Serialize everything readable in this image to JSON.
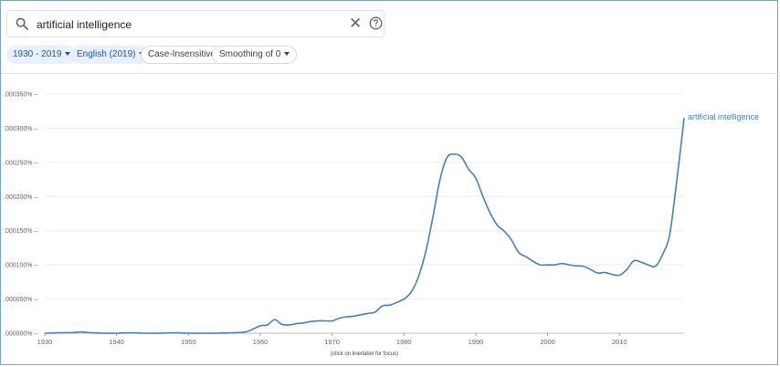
{
  "search": {
    "query": "artificial intelligence",
    "clear_glyph": "✕"
  },
  "filters": {
    "year_range": "1930 - 2019",
    "corpus": "English (2019)",
    "case": "Case-Insensitive",
    "smoothing": "Smoothing of 0"
  },
  "icons": {
    "search": "search-icon",
    "clear": "close-icon",
    "help": "help-icon",
    "dropdown": "caret-down-icon"
  },
  "colors": {
    "line": "#4a7fb5",
    "chip_fill": "#e8f0fe",
    "chip_text": "#1a57a8"
  },
  "chart_data": {
    "type": "line",
    "x_range": [
      1930,
      2019
    ],
    "y_range": [
      0,
      0.00035
    ],
    "x_ticks": [
      1930,
      1940,
      1950,
      1960,
      1970,
      1980,
      1990,
      2000,
      2010
    ],
    "x_tick_labels": [
      "1930",
      "1940",
      "1950",
      "1960",
      "1970",
      "1980",
      "1990",
      "2000",
      "2010"
    ],
    "y_ticks": [
      0,
      5e-05,
      0.0001,
      0.00015,
      0.0002,
      0.00025,
      0.0003,
      0.00035
    ],
    "y_tick_labels": [
      ".000000%",
      ".000050%",
      ".000100%",
      ".000150%",
      ".000200%",
      ".000250%",
      ".000300%",
      ".000350%"
    ],
    "note": "(click on line/label for focus)",
    "series": [
      {
        "name": "artificial intelligence",
        "x": [
          1930,
          1932,
          1934,
          1935,
          1936,
          1938,
          1940,
          1942,
          1944,
          1946,
          1948,
          1950,
          1952,
          1954,
          1956,
          1957,
          1958,
          1959,
          1960,
          1961,
          1962,
          1963,
          1964,
          1965,
          1966,
          1967,
          1968,
          1969,
          1970,
          1971,
          1972,
          1973,
          1974,
          1975,
          1976,
          1977,
          1978,
          1979,
          1980,
          1981,
          1982,
          1983,
          1984,
          1985,
          1986,
          1987,
          1988,
          1989,
          1990,
          1991,
          1992,
          1993,
          1994,
          1995,
          1996,
          1997,
          1998,
          1999,
          2000,
          2001,
          2002,
          2003,
          2004,
          2005,
          2006,
          2007,
          2008,
          2009,
          2010,
          2011,
          2012,
          2013,
          2014,
          2015,
          2016,
          2017,
          2018,
          2019
        ],
        "values": [
          0.0,
          5e-07,
          1e-06,
          2e-06,
          1e-06,
          0.0,
          0.0,
          5e-07,
          0.0,
          0.0,
          5e-07,
          0.0,
          0.0,
          0.0,
          5e-07,
          1e-06,
          2e-06,
          6e-06,
          1.1e-05,
          1.2e-05,
          2e-05,
          1.3e-05,
          1.2e-05,
          1.4e-05,
          1.5e-05,
          1.7e-05,
          1.8e-05,
          1.8e-05,
          1.8e-05,
          2.2e-05,
          2.4e-05,
          2.5e-05,
          2.7e-05,
          2.9e-05,
          3.1e-05,
          4e-05,
          4.1e-05,
          4.5e-05,
          5e-05,
          6e-05,
          8.2e-05,
          0.000118,
          0.000168,
          0.000224,
          0.000257,
          0.000262,
          0.000258,
          0.00024,
          0.000227,
          0.0002,
          0.000176,
          0.000158,
          0.000149,
          0.000136,
          0.000118,
          0.000112,
          0.000105,
          0.0001,
          0.0001,
          0.0001,
          0.000102,
          0.0001,
          9.85e-05,
          9.8e-05,
          9.3e-05,
          8.8e-05,
          8.9e-05,
          8.6e-05,
          8.5e-05,
          9.3e-05,
          0.000106,
          0.000104,
          0.0001,
          9.8e-05,
          0.000115,
          0.000145,
          0.000225,
          0.000315
        ]
      }
    ]
  }
}
